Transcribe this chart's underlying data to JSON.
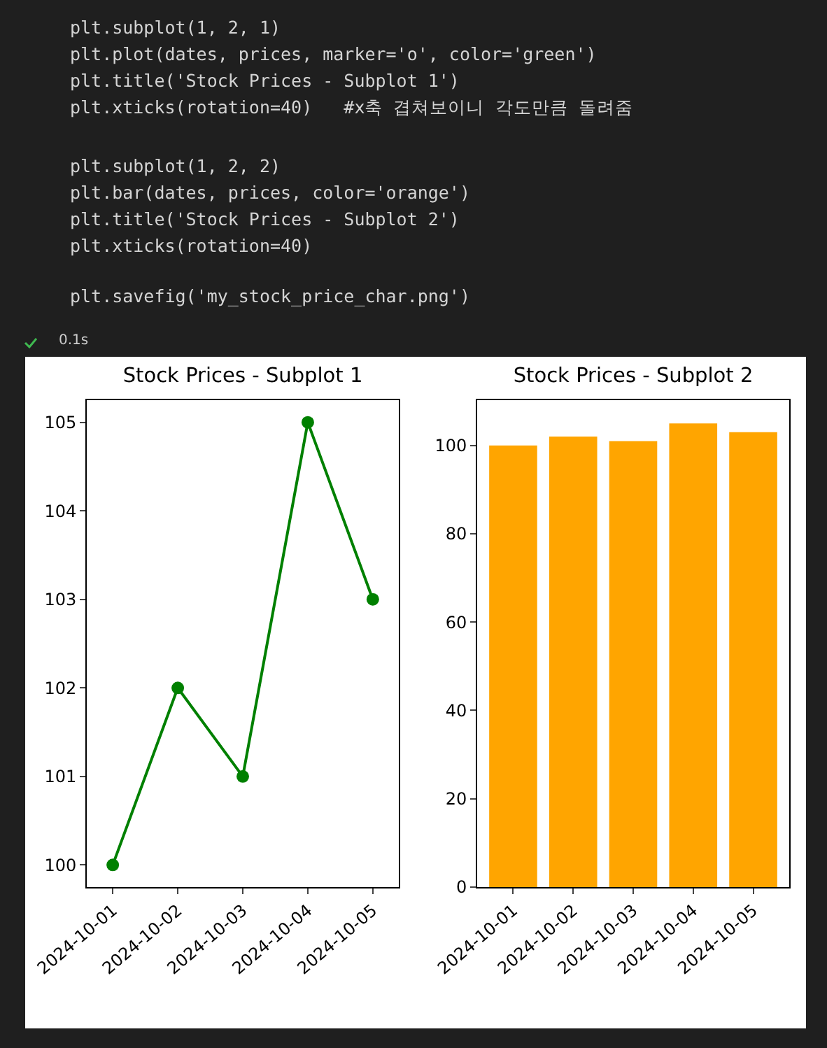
{
  "chart_data": [
    {
      "type": "other",
      "annotations": [
        "plt.subplot(1, 2, 1)",
        "plt.plot(dates, prices, marker='o', color='green')",
        "plt.title('Stock Prices - Subplot 1')",
        "plt.xticks(rotation=40)   #x축 겹쳐보이니 각도만큼 돌려줌",
        "plt.subplot(1, 2, 2)",
        "plt.bar(dates, prices, color='orange')",
        "plt.title('Stock Prices - Subplot 2')",
        "plt.xticks(rotation=40)",
        "plt.savefig('my_stock_price_char.png')",
        "0.1s"
      ]
    },
    {
      "type": "line",
      "title": "Stock Prices - Subplot 1",
      "categories": [
        "2024-10-01",
        "2024-10-02",
        "2024-10-03",
        "2024-10-04",
        "2024-10-05"
      ],
      "series": [
        {
          "color": "#008000",
          "values": [
            100,
            102,
            101,
            105,
            103
          ]
        }
      ],
      "ylim": [
        99.75,
        105.25
      ],
      "yticks": [
        100,
        101,
        102,
        103,
        104,
        105
      ],
      "marker": "circle",
      "grid": false
    },
    {
      "type": "bar",
      "title": "Stock Prices - Subplot 2",
      "categories": [
        "2024-10-01",
        "2024-10-02",
        "2024-10-03",
        "2024-10-04",
        "2024-10-05"
      ],
      "series": [
        {
          "color": "#ffa500",
          "values": [
            100,
            102,
            101,
            105,
            103
          ]
        }
      ],
      "ylim": [
        0,
        110.25
      ],
      "yticks": [
        0,
        20,
        40,
        60,
        80,
        100
      ],
      "grid": false
    }
  ]
}
